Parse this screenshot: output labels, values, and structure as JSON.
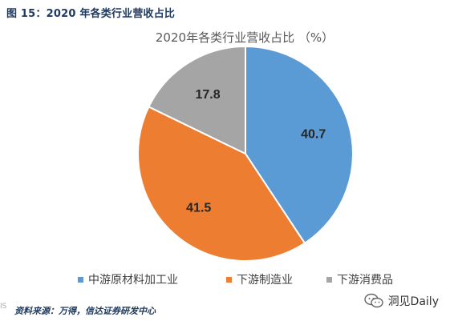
{
  "caption": "图 15：2020 年各类行业营收占比",
  "source_note": "资料来源：万得，信达证券研发中心",
  "watermark": "洞见Daily",
  "corner_mark": "IS",
  "chart_data": {
    "type": "pie",
    "title": "2020年各类行业营收占比 （%）",
    "categories": [
      "中游原材料加工业",
      "下游制造业",
      "下游消费品"
    ],
    "values": [
      40.7,
      41.5,
      17.8
    ],
    "value_labels": [
      "40.7",
      "41.5",
      "17.8"
    ],
    "colors": [
      "#5b9bd5",
      "#ed7d31",
      "#a5a5a5"
    ],
    "start_angle_deg": 0,
    "direction": "clockwise",
    "legend": "bottom"
  }
}
